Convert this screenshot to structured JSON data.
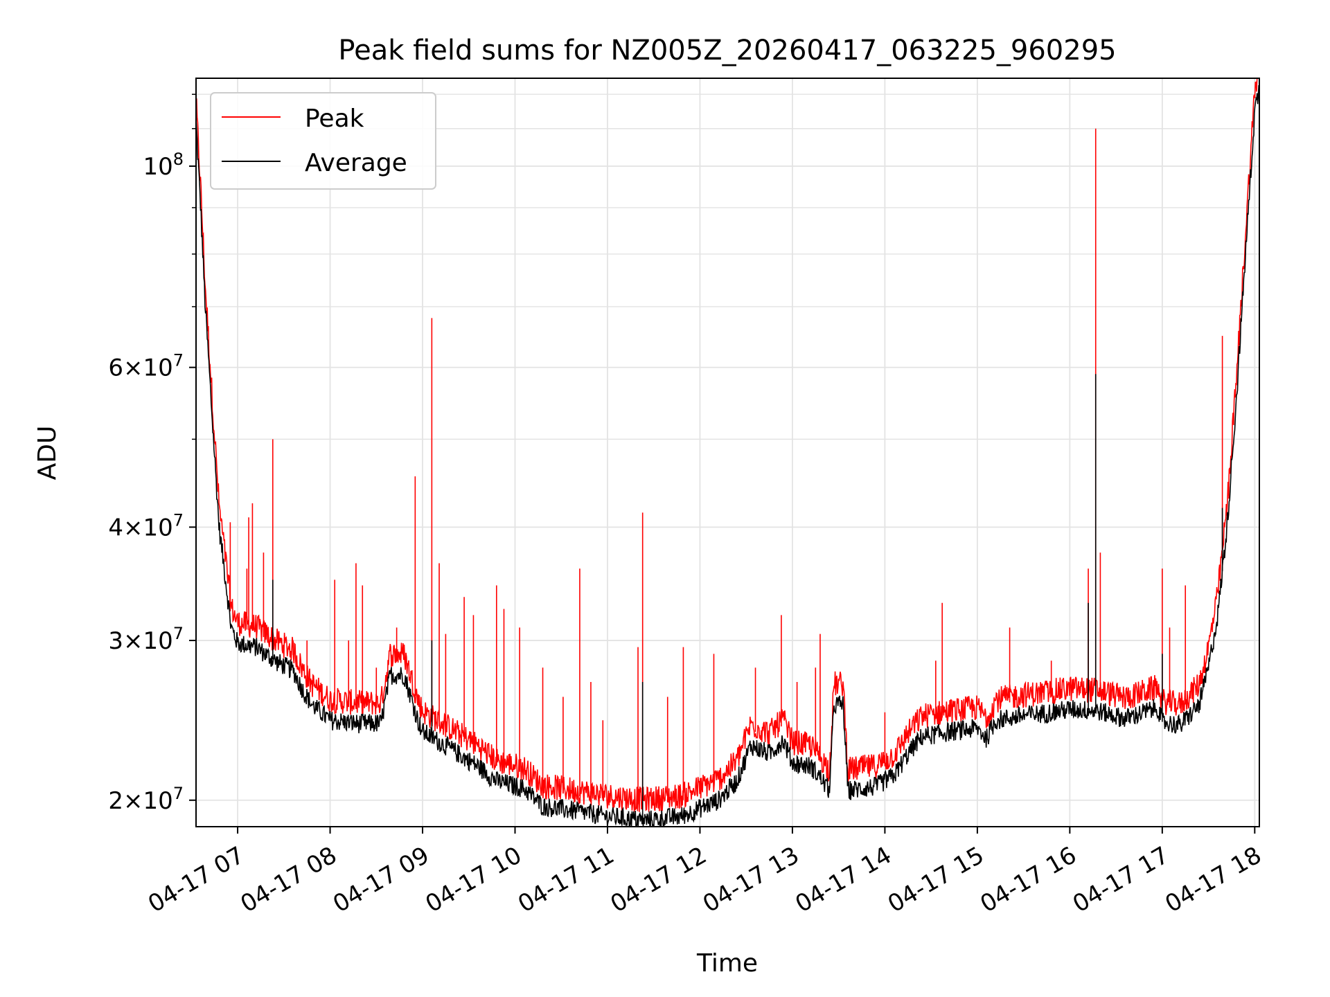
{
  "chart_data": {
    "type": "line",
    "title": "Peak field sums for NZ005Z_20260417_063225_960295",
    "xlabel": "Time",
    "ylabel": "ADU",
    "yscale": "log",
    "ylim": [
      18700000,
      125000000
    ],
    "xlim_hours": [
      6.55,
      18.05
    ],
    "grid": true,
    "legend_position": "upper-left",
    "x_ticks": [
      {
        "hour": 7,
        "label": "04-17 07"
      },
      {
        "hour": 8,
        "label": "04-17 08"
      },
      {
        "hour": 9,
        "label": "04-17 09"
      },
      {
        "hour": 10,
        "label": "04-17 10"
      },
      {
        "hour": 11,
        "label": "04-17 11"
      },
      {
        "hour": 12,
        "label": "04-17 12"
      },
      {
        "hour": 13,
        "label": "04-17 13"
      },
      {
        "hour": 14,
        "label": "04-17 14"
      },
      {
        "hour": 15,
        "label": "04-17 15"
      },
      {
        "hour": 16,
        "label": "04-17 16"
      },
      {
        "hour": 17,
        "label": "04-17 17"
      },
      {
        "hour": 18,
        "label": "04-17 18"
      }
    ],
    "y_ticks": [
      {
        "value": 20000000,
        "mantissa": "2",
        "exponent": "7"
      },
      {
        "value": 30000000,
        "mantissa": "3",
        "exponent": "7"
      },
      {
        "value": 40000000,
        "mantissa": "4",
        "exponent": "7"
      },
      {
        "value": 60000000,
        "mantissa": "6",
        "exponent": "7"
      },
      {
        "value": 100000000,
        "mantissa": "",
        "exponent": "8"
      }
    ],
    "series": [
      {
        "name": "Peak",
        "color": "#ff0000"
      },
      {
        "name": "Average",
        "color": "#000000"
      }
    ],
    "baseline_average": [
      [
        6.55,
        112000000
      ],
      [
        6.6,
        90000000
      ],
      [
        6.65,
        70000000
      ],
      [
        6.7,
        58000000
      ],
      [
        6.75,
        48000000
      ],
      [
        6.8,
        40000000
      ],
      [
        6.87,
        35000000
      ],
      [
        6.93,
        31000000
      ],
      [
        7.0,
        29800000
      ],
      [
        7.2,
        29500000
      ],
      [
        7.4,
        28500000
      ],
      [
        7.6,
        27800000
      ],
      [
        7.7,
        26500000
      ],
      [
        7.8,
        25500000
      ],
      [
        8.0,
        24500000
      ],
      [
        8.3,
        24300000
      ],
      [
        8.55,
        24300000
      ],
      [
        8.65,
        27500000
      ],
      [
        8.8,
        27500000
      ],
      [
        8.95,
        24500000
      ],
      [
        9.0,
        23800000
      ],
      [
        9.3,
        22800000
      ],
      [
        9.6,
        21800000
      ],
      [
        9.8,
        21000000
      ],
      [
        10.1,
        20600000
      ],
      [
        10.3,
        19700000
      ],
      [
        10.6,
        19500000
      ],
      [
        11.0,
        19200000
      ],
      [
        11.4,
        19000000
      ],
      [
        11.8,
        19200000
      ],
      [
        12.2,
        20000000
      ],
      [
        12.4,
        21000000
      ],
      [
        12.55,
        23000000
      ],
      [
        12.75,
        22500000
      ],
      [
        12.9,
        23300000
      ],
      [
        13.0,
        22000000
      ],
      [
        13.2,
        21800000
      ],
      [
        13.3,
        21200000
      ],
      [
        13.4,
        20500000
      ],
      [
        13.45,
        25500000
      ],
      [
        13.55,
        25500000
      ],
      [
        13.6,
        20500000
      ],
      [
        13.9,
        20700000
      ],
      [
        14.1,
        21300000
      ],
      [
        14.25,
        22500000
      ],
      [
        14.4,
        23500000
      ],
      [
        14.7,
        23800000
      ],
      [
        15.0,
        24000000
      ],
      [
        15.1,
        23400000
      ],
      [
        15.2,
        24500000
      ],
      [
        15.5,
        24800000
      ],
      [
        15.8,
        25000000
      ],
      [
        16.0,
        25200000
      ],
      [
        16.3,
        25100000
      ],
      [
        16.6,
        24600000
      ],
      [
        16.8,
        25000000
      ],
      [
        16.95,
        25300000
      ],
      [
        17.0,
        24400000
      ],
      [
        17.2,
        24200000
      ],
      [
        17.4,
        25500000
      ],
      [
        17.5,
        28000000
      ],
      [
        17.6,
        32000000
      ],
      [
        17.7,
        40000000
      ],
      [
        17.8,
        55000000
      ],
      [
        17.9,
        80000000
      ],
      [
        18.0,
        115000000
      ],
      [
        18.05,
        122000000
      ]
    ],
    "peak_spikes": [
      [
        6.92,
        40500000
      ],
      [
        7.1,
        36000000
      ],
      [
        7.12,
        41000000
      ],
      [
        7.16,
        42500000
      ],
      [
        7.28,
        37500000
      ],
      [
        7.38,
        50000000
      ],
      [
        7.6,
        30000000
      ],
      [
        7.75,
        30000000
      ],
      [
        8.05,
        35000000
      ],
      [
        8.2,
        30000000
      ],
      [
        8.28,
        36500000
      ],
      [
        8.35,
        34500000
      ],
      [
        8.5,
        28000000
      ],
      [
        8.72,
        31000000
      ],
      [
        8.92,
        45500000
      ],
      [
        9.1,
        68000000
      ],
      [
        9.18,
        36500000
      ],
      [
        9.25,
        30500000
      ],
      [
        9.45,
        33500000
      ],
      [
        9.55,
        32000000
      ],
      [
        9.8,
        34500000
      ],
      [
        9.88,
        32500000
      ],
      [
        10.05,
        31000000
      ],
      [
        10.3,
        28000000
      ],
      [
        10.52,
        26000000
      ],
      [
        10.7,
        36000000
      ],
      [
        10.82,
        27000000
      ],
      [
        10.95,
        24500000
      ],
      [
        11.33,
        29500000
      ],
      [
        11.38,
        41500000
      ],
      [
        11.65,
        26000000
      ],
      [
        11.82,
        29500000
      ],
      [
        12.15,
        29000000
      ],
      [
        12.6,
        28000000
      ],
      [
        12.88,
        32000000
      ],
      [
        13.05,
        27000000
      ],
      [
        13.25,
        28000000
      ],
      [
        13.3,
        30500000
      ],
      [
        14.0,
        25000000
      ],
      [
        14.55,
        28500000
      ],
      [
        14.62,
        33000000
      ],
      [
        15.35,
        31000000
      ],
      [
        15.8,
        28500000
      ],
      [
        16.2,
        36000000
      ],
      [
        16.28,
        110000000
      ],
      [
        16.33,
        37500000
      ],
      [
        17.0,
        36000000
      ],
      [
        17.08,
        31000000
      ],
      [
        17.25,
        34500000
      ],
      [
        17.65,
        65000000
      ],
      [
        17.72,
        43000000
      ]
    ],
    "average_spikes": [
      [
        16.28,
        59000000
      ],
      [
        16.2,
        33000000
      ],
      [
        17.65,
        42000000
      ],
      [
        9.1,
        30000000
      ],
      [
        7.38,
        35000000
      ],
      [
        11.38,
        27000000
      ],
      [
        17.0,
        29000000
      ]
    ]
  }
}
